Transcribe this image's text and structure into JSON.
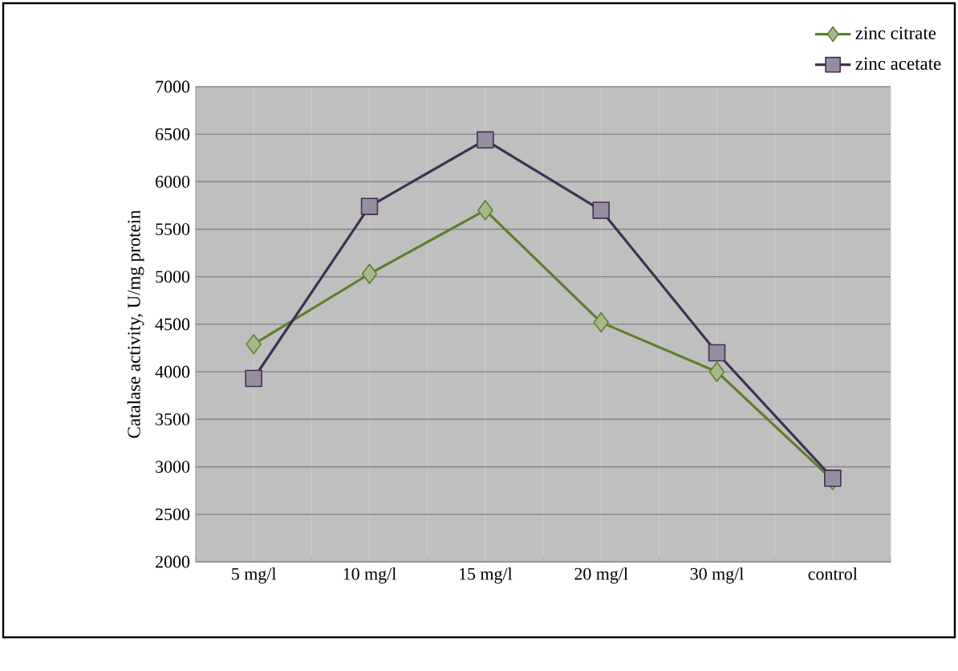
{
  "chart_data": {
    "type": "line",
    "ylabel": "Catalase activity, U/mg protein",
    "categories": [
      "5 mg/l",
      "10 mg/l",
      "15 mg/l",
      "20 mg/l",
      "30 mg/l",
      "control"
    ],
    "series": [
      {
        "name": "zinc citrate",
        "color": "#5f7f2a",
        "marker": "diamond",
        "values": [
          4290,
          5030,
          5700,
          4520,
          4000,
          2860
        ]
      },
      {
        "name": "zinc acetate",
        "color": "#403152",
        "marker": "square",
        "values": [
          3930,
          5740,
          6440,
          5700,
          4200,
          2880
        ]
      }
    ],
    "ylim": [
      2000,
      7000
    ],
    "yticks": [
      2000,
      2500,
      3000,
      3500,
      4000,
      4500,
      5000,
      5500,
      6000,
      6500,
      7000
    ],
    "grid": true,
    "legend": "top right"
  }
}
